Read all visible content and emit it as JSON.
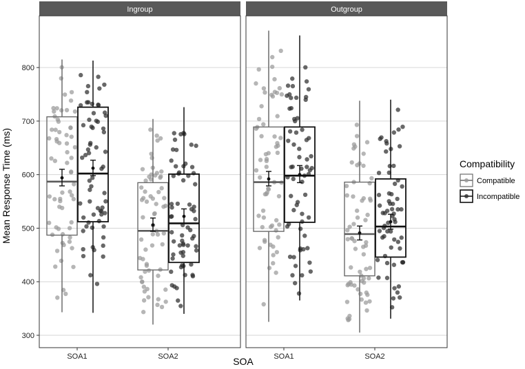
{
  "chart_data": {
    "type": "boxplot",
    "ylabel": "Mean Response Time (ms)",
    "xlabel": "SOA",
    "ylim": [
      290,
      895
    ],
    "yticks": [
      300,
      400,
      500,
      600,
      700,
      800
    ],
    "categories": [
      "SOA1",
      "SOA2"
    ],
    "legend": {
      "title": "Compatibility",
      "position": "right",
      "entries": [
        "Compatible",
        "Incompatible"
      ]
    },
    "colors": {
      "Compatible": "#9a9a9a",
      "Incompatible": "#2e2e2e",
      "strip_bg": "#595959"
    },
    "grid": true,
    "panels": [
      {
        "title": "Ingroup",
        "boxes": [
          {
            "category": "SOA1",
            "series": "Compatible",
            "min": 343,
            "q1": 487,
            "median": 587,
            "q3": 708,
            "max": 815,
            "mean": 594,
            "ci": [
              579,
              610
            ]
          },
          {
            "category": "SOA1",
            "series": "Incompatible",
            "min": 342,
            "q1": 512,
            "median": 602,
            "q3": 726,
            "max": 813,
            "mean": 612,
            "ci": [
              598,
              627
            ]
          },
          {
            "category": "SOA2",
            "series": "Compatible",
            "min": 320,
            "q1": 422,
            "median": 495,
            "q3": 585,
            "max": 704,
            "mean": 506,
            "ci": [
              494,
              519
            ]
          },
          {
            "category": "SOA2",
            "series": "Incompatible",
            "min": 340,
            "q1": 436,
            "median": 509,
            "q3": 601,
            "max": 726,
            "mean": 522,
            "ci": [
              509,
              536
            ]
          }
        ]
      },
      {
        "title": "Outgroup",
        "boxes": [
          {
            "category": "SOA1",
            "series": "Compatible",
            "min": 325,
            "q1": 494,
            "median": 586,
            "q3": 689,
            "max": 869,
            "mean": 592,
            "ci": [
              579,
              606
            ]
          },
          {
            "category": "SOA1",
            "series": "Incompatible",
            "min": 365,
            "q1": 511,
            "median": 598,
            "q3": 689,
            "max": 860,
            "mean": 600,
            "ci": [
              585,
              617
            ]
          },
          {
            "category": "SOA2",
            "series": "Compatible",
            "min": 305,
            "q1": 411,
            "median": 489,
            "q3": 586,
            "max": 738,
            "mean": 491,
            "ci": [
              478,
              504
            ]
          },
          {
            "category": "SOA2",
            "series": "Incompatible",
            "min": 331,
            "q1": 446,
            "median": 503,
            "q3": 592,
            "max": 740,
            "mean": 512,
            "ci": [
              498,
              526
            ]
          }
        ]
      }
    ]
  }
}
